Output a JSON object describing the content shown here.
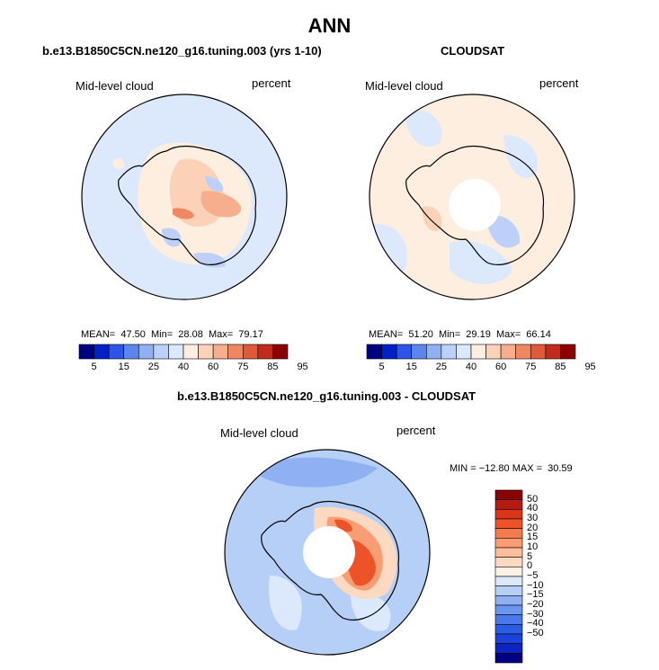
{
  "figure_title": "ANN",
  "panels": [
    {
      "title": "b.e13.B1850C5CN.ne120_g16.tuning.003 (yrs 1-10)",
      "variable": "Mid-level cloud",
      "units": "percent",
      "stats": {
        "mean_label": "MEAN=",
        "mean": "47.50",
        "min_label": "Min=",
        "min": "28.08",
        "max_label": "Max=",
        "max": "79.17"
      }
    },
    {
      "title": "CLOUDSAT",
      "variable": "Mid-level cloud",
      "units": "percent",
      "stats": {
        "mean_label": "MEAN=",
        "mean": "51.20",
        "min_label": "Min=",
        "min": "29.19",
        "max_label": "Max=",
        "max": "66.14"
      }
    },
    {
      "title": "b.e13.B1850C5CN.ne120_g16.tuning.003 - CLOUDSAT",
      "variable": "Mid-level cloud",
      "units": "percent",
      "stats_text": "MIN = −12.80 MAX =  30.59"
    }
  ],
  "chart_data": [
    {
      "type": "heatmap",
      "projection": "south polar stereographic",
      "title": "b.e13.B1850C5CN.ne120_g16.tuning.003 (yrs 1-10)",
      "variable": "Mid-level cloud",
      "units": "percent",
      "mean": 47.5,
      "min": 28.08,
      "max": 79.17,
      "colorbar": {
        "orientation": "horizontal",
        "tick_labels": [
          "5",
          "15",
          "25",
          "40",
          "60",
          "75",
          "85",
          "95"
        ],
        "colors": [
          "#000080",
          "#0020c8",
          "#2f55e6",
          "#5a86ee",
          "#8fb0f3",
          "#bcd0f8",
          "#dce8fc",
          "#fdeee0",
          "#fbd2b8",
          "#f6ae8c",
          "#f08662",
          "#e05a3a",
          "#c32a1e",
          "#8b0000"
        ]
      }
    },
    {
      "type": "heatmap",
      "projection": "south polar stereographic",
      "title": "CLOUDSAT",
      "variable": "Mid-level cloud",
      "units": "percent",
      "mean": 51.2,
      "min": 29.19,
      "max": 66.14,
      "colorbar": {
        "orientation": "horizontal",
        "tick_labels": [
          "5",
          "15",
          "25",
          "40",
          "60",
          "75",
          "85",
          "95"
        ],
        "colors": [
          "#000080",
          "#0020c8",
          "#2f55e6",
          "#5a86ee",
          "#8fb0f3",
          "#bcd0f8",
          "#dce8fc",
          "#fdeee0",
          "#fbd2b8",
          "#f6ae8c",
          "#f08662",
          "#e05a3a",
          "#c32a1e",
          "#8b0000"
        ]
      }
    },
    {
      "type": "heatmap",
      "projection": "south polar stereographic",
      "title": "b.e13.B1850C5CN.ne120_g16.tuning.003 - CLOUDSAT",
      "variable": "Mid-level cloud",
      "units": "percent",
      "min": -12.8,
      "max": 30.59,
      "colorbar": {
        "orientation": "vertical",
        "tick_labels": [
          "50",
          "40",
          "30",
          "20",
          "15",
          "10",
          "5",
          "0",
          "−5",
          "−10",
          "−15",
          "−20",
          "−30",
          "−40",
          "−50"
        ],
        "colors": [
          "#8b0000",
          "#b51b12",
          "#d93519",
          "#ee5228",
          "#f67a4c",
          "#f99d74",
          "#fbbd9c",
          "#fdd9c2",
          "#fdf0e6",
          "#dce8fc",
          "#b6cff7",
          "#8fb0f3",
          "#6b95ef",
          "#4a78ea",
          "#2a5ce4",
          "#1c42dc",
          "#0d25c0",
          "#000080"
        ]
      }
    }
  ]
}
